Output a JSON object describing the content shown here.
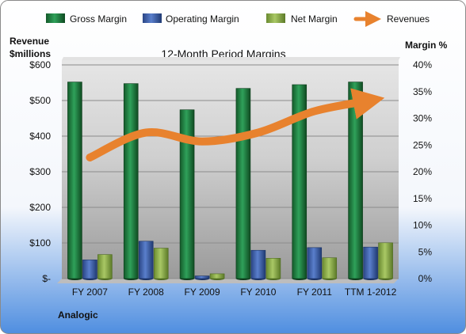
{
  "company": "Analogic",
  "chart_data": {
    "type": "bar",
    "title": "12-Month Period Margins",
    "categories": [
      "FY 2007",
      "FY 2008",
      "FY 2009",
      "FY 2010",
      "FY 2011",
      "TTM 1-2012"
    ],
    "left_axis": {
      "label_lines": [
        "Revenue",
        "$millions"
      ],
      "ticks": [
        "$-",
        "$100",
        "$200",
        "$300",
        "$400",
        "$500",
        "$600"
      ],
      "range": [
        0,
        600
      ]
    },
    "right_axis": {
      "label": "Margin %",
      "ticks": [
        "0%",
        "5%",
        "10%",
        "15%",
        "20%",
        "25%",
        "30%",
        "35%",
        "40%"
      ],
      "range": [
        0,
        40
      ]
    },
    "series": [
      {
        "name": "Gross Margin",
        "kind": "bar",
        "axis": "right",
        "color": "#1f7a3a",
        "values": [
          36.8,
          36.5,
          31.6,
          35.6,
          36.3,
          36.8
        ]
      },
      {
        "name": "Operating Margin",
        "kind": "bar",
        "axis": "right",
        "color": "#3b5da8",
        "values": [
          3.5,
          7.0,
          0.5,
          5.3,
          5.8,
          5.9
        ]
      },
      {
        "name": "Net Margin",
        "kind": "bar",
        "axis": "right",
        "color": "#8dae48",
        "values": [
          4.5,
          5.7,
          0.9,
          3.8,
          3.9,
          6.7
        ]
      },
      {
        "name": "Revenues",
        "kind": "line",
        "axis": "left",
        "color": "#e8822e",
        "values": [
          340,
          410,
          385,
          410,
          470,
          500
        ]
      }
    ],
    "grid": true,
    "legend_position": "top"
  }
}
